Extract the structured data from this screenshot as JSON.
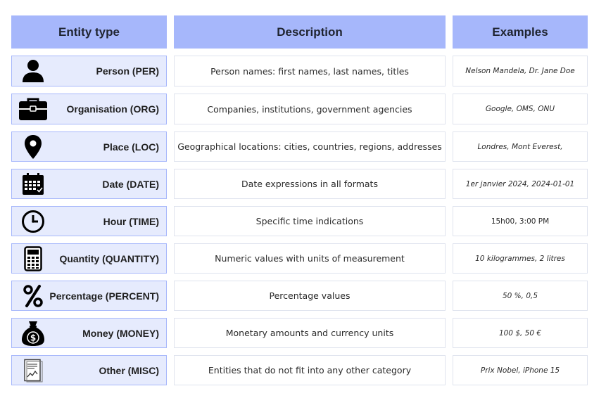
{
  "headers": {
    "entity_type": "Entity type",
    "description": "Description",
    "examples": "Examples"
  },
  "rows": [
    {
      "label": "Person (PER)",
      "icon": "person-icon",
      "description": "Person names: first names, last names, titles",
      "examples": "Nelson Mandela, Dr. Jane Doe",
      "italic": true
    },
    {
      "label": "Organisation (ORG)",
      "icon": "briefcase-icon",
      "description": "Companies, institutions, government agencies",
      "examples": "Google, OMS, ONU",
      "italic": true
    },
    {
      "label": "Place (LOC)",
      "icon": "location-pin-icon",
      "description": "Geographical locations: cities, countries, regions, addresses",
      "examples": "Londres, Mont Everest,",
      "italic": true
    },
    {
      "label": "Date (DATE)",
      "icon": "calendar-icon",
      "description": "Date expressions in all formats",
      "examples": "1er janvier 2024, 2024-01-01",
      "italic": true
    },
    {
      "label": "Hour (TIME)",
      "icon": "clock-icon",
      "description": "Specific time indications",
      "examples": "15h00, 3:00 PM",
      "italic": false
    },
    {
      "label": "Quantity (QUANTITY)",
      "icon": "calculator-icon",
      "description": "Numeric values with units of measurement",
      "examples": "10 kilogrammes, 2 litres",
      "italic": true
    },
    {
      "label": "Percentage (PERCENT)",
      "icon": "percent-icon",
      "description": "Percentage values",
      "examples": "50 %, 0,5",
      "italic": true
    },
    {
      "label": "Money (MONEY)",
      "icon": "money-bag-icon",
      "description": "Monetary amounts and currency units",
      "examples": "100 $, 50 €",
      "italic": true
    },
    {
      "label": "Other (MISC)",
      "icon": "document-chart-icon",
      "description": "Entities that do not fit into any other category",
      "examples": "Prix Nobel, iPhone 15",
      "italic": true
    }
  ]
}
